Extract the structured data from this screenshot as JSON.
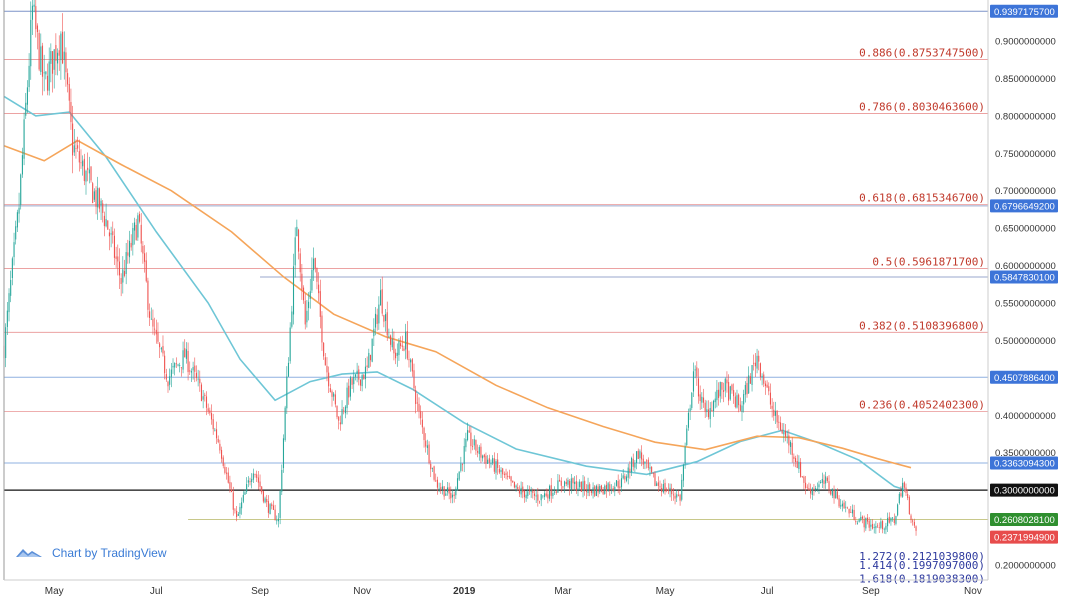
{
  "chart_data": {
    "type": "candlestick",
    "symbol_context": "price chart with Fibonacci retracement and extension levels",
    "x_range": [
      "2018-04-01",
      "2019-11-10"
    ],
    "ylim": [
      0.18,
      0.96
    ],
    "grid": false,
    "month_ticks": [
      {
        "label": "May",
        "date": "2018-05-01"
      },
      {
        "label": "Jul",
        "date": "2018-07-01"
      },
      {
        "label": "Sep",
        "date": "2018-09-01"
      },
      {
        "label": "Nov",
        "date": "2018-11-01"
      },
      {
        "label": "2019",
        "date": "2019-01-01"
      },
      {
        "label": "Mar",
        "date": "2019-03-01"
      },
      {
        "label": "May",
        "date": "2019-05-01"
      },
      {
        "label": "Jul",
        "date": "2019-07-01"
      },
      {
        "label": "Sep",
        "date": "2019-09-01"
      },
      {
        "label": "Nov",
        "date": "2019-11-01"
      }
    ],
    "price_ticks": [
      {
        "label": "0.9000000000",
        "value": 0.9
      },
      {
        "label": "0.8500000000",
        "value": 0.85
      },
      {
        "label": "0.8000000000",
        "value": 0.8
      },
      {
        "label": "0.7500000000",
        "value": 0.75
      },
      {
        "label": "0.7000000000",
        "value": 0.7
      },
      {
        "label": "0.6500000000",
        "value": 0.65
      },
      {
        "label": "0.6000000000",
        "value": 0.6
      },
      {
        "label": "0.5500000000",
        "value": 0.55
      },
      {
        "label": "0.5000000000",
        "value": 0.5
      },
      {
        "label": "0.4000000000",
        "value": 0.4
      },
      {
        "label": "0.3500000000",
        "value": 0.35
      },
      {
        "label": "0.2000000000",
        "value": 0.2
      }
    ],
    "fib_levels": [
      {
        "label": "0.886(0.8753747500)",
        "value": 0.87537475,
        "color": "#e06666",
        "text_color": "#c0392b",
        "side": "right"
      },
      {
        "label": "0.786(0.8030463600)",
        "value": 0.80304636,
        "color": "#e06666",
        "text_color": "#c0392b",
        "side": "right"
      },
      {
        "label": "0.618(0.6815346700)",
        "value": 0.68153467,
        "color": "#e06666",
        "text_color": "#c0392b",
        "side": "right"
      },
      {
        "label": "0.5(0.5961871700)",
        "value": 0.59618717,
        "color": "#e06666",
        "text_color": "#c0392b",
        "side": "right"
      },
      {
        "label": "0.382(0.5108396800)",
        "value": 0.51083968,
        "color": "#e06666",
        "text_color": "#c0392b",
        "side": "right"
      },
      {
        "label": "0.236(0.4052402300)",
        "value": 0.40524023,
        "color": "#e06666",
        "text_color": "#c0392b",
        "side": "right"
      },
      {
        "label": "1.272(0.2121039800)",
        "value": 0.21210398,
        "color": "#2e3a9e",
        "text_color": "#2e3a9e",
        "side": "right"
      },
      {
        "label": "1.414(0.1997097000)",
        "value": 0.1997097,
        "color": "#2e3a9e",
        "text_color": "#2e3a9e",
        "side": "right"
      },
      {
        "label": "1.618(0.1819038300)",
        "value": 0.18190383,
        "color": "#2e3a9e",
        "text_color": "#2e3a9e",
        "side": "right"
      }
    ],
    "horizontal_lines": [
      {
        "value": 0.93971757,
        "color": "#7d93c8",
        "tag": "0.9397175700",
        "tag_color": "#3d74d8",
        "start_date": "2018-04-01"
      },
      {
        "value": 0.67966492,
        "color": "#9aa7cc",
        "tag": "0.6796649200",
        "tag_color": "#3d74d8",
        "start_date": "2018-04-01"
      },
      {
        "value": 0.58478301,
        "color": "#9aa7cc",
        "tag": "0.5847830100",
        "tag_color": "#3d74d8",
        "start_date": "2018-09-01"
      },
      {
        "value": 0.45078864,
        "color": "#8fb0e0",
        "tag": "0.4507886400",
        "tag_color": "#3d74d8",
        "start_date": "2018-04-01"
      },
      {
        "value": 0.33630943,
        "color": "#8fb0e0",
        "tag": "0.3363094300",
        "tag_color": "#3d74d8",
        "start_date": "2018-04-01"
      },
      {
        "value": 0.3,
        "color": "#111111",
        "tag": "0.3000000000",
        "tag_color": "#111111",
        "start_date": "2018-04-01"
      },
      {
        "value": 0.26080281,
        "color": "#c8c88a",
        "tag": "0.2608028100",
        "tag_color": "#2f8f2f",
        "start_date": "2018-07-20"
      }
    ],
    "current_price": {
      "label": "0.2371994900",
      "value": 0.23719949,
      "color": "#e74c4c"
    },
    "ma_series": [
      {
        "color": "#6ec6d6",
        "points": [
          [
            "2018-04-01",
            0.826
          ],
          [
            "2018-04-20",
            0.8
          ],
          [
            "2018-05-10",
            0.805
          ],
          [
            "2018-06-01",
            0.745
          ],
          [
            "2018-07-01",
            0.645
          ],
          [
            "2018-08-01",
            0.55
          ],
          [
            "2018-08-20",
            0.475
          ],
          [
            "2018-09-10",
            0.42
          ],
          [
            "2018-10-01",
            0.445
          ],
          [
            "2018-10-20",
            0.455
          ],
          [
            "2018-11-10",
            0.458
          ],
          [
            "2018-12-01",
            0.435
          ],
          [
            "2019-01-01",
            0.39
          ],
          [
            "2019-02-01",
            0.355
          ],
          [
            "2019-03-15",
            0.332
          ],
          [
            "2019-04-20",
            0.321
          ],
          [
            "2019-05-20",
            0.338
          ],
          [
            "2019-06-15",
            0.365
          ],
          [
            "2019-07-10",
            0.38
          ],
          [
            "2019-08-01",
            0.363
          ],
          [
            "2019-08-25",
            0.34
          ],
          [
            "2019-09-15",
            0.305
          ],
          [
            "2019-09-22",
            0.3
          ]
        ]
      },
      {
        "color": "#f5a55a",
        "points": [
          [
            "2018-04-01",
            0.76
          ],
          [
            "2018-04-25",
            0.74
          ],
          [
            "2018-05-15",
            0.767
          ],
          [
            "2018-06-10",
            0.735
          ],
          [
            "2018-07-10",
            0.7
          ],
          [
            "2018-08-15",
            0.645
          ],
          [
            "2018-09-15",
            0.585
          ],
          [
            "2018-10-15",
            0.535
          ],
          [
            "2018-11-15",
            0.505
          ],
          [
            "2018-12-15",
            0.485
          ],
          [
            "2019-01-20",
            0.44
          ],
          [
            "2019-02-20",
            0.41
          ],
          [
            "2019-03-25",
            0.385
          ],
          [
            "2019-04-25",
            0.364
          ],
          [
            "2019-05-25",
            0.354
          ],
          [
            "2019-06-25",
            0.372
          ],
          [
            "2019-07-20",
            0.37
          ],
          [
            "2019-08-15",
            0.356
          ],
          [
            "2019-09-05",
            0.342
          ],
          [
            "2019-09-25",
            0.33
          ]
        ]
      }
    ],
    "price_path": [
      [
        "2018-04-01",
        0.49
      ],
      [
        "2018-04-10",
        0.68
      ],
      [
        "2018-04-18",
        0.94
      ],
      [
        "2018-04-25",
        0.84
      ],
      [
        "2018-05-05",
        0.91
      ],
      [
        "2018-05-12",
        0.76
      ],
      [
        "2018-05-20",
        0.72
      ],
      [
        "2018-06-01",
        0.66
      ],
      [
        "2018-06-10",
        0.58
      ],
      [
        "2018-06-20",
        0.66
      ],
      [
        "2018-06-28",
        0.52
      ],
      [
        "2018-07-08",
        0.45
      ],
      [
        "2018-07-18",
        0.48
      ],
      [
        "2018-07-28",
        0.43
      ],
      [
        "2018-08-08",
        0.36
      ],
      [
        "2018-08-18",
        0.26
      ],
      [
        "2018-08-28",
        0.33
      ],
      [
        "2018-09-05",
        0.28
      ],
      [
        "2018-09-12",
        0.26
      ],
      [
        "2018-09-18",
        0.48
      ],
      [
        "2018-09-23",
        0.66
      ],
      [
        "2018-09-28",
        0.52
      ],
      [
        "2018-10-03",
        0.61
      ],
      [
        "2018-10-10",
        0.47
      ],
      [
        "2018-10-18",
        0.39
      ],
      [
        "2018-10-25",
        0.44
      ],
      [
        "2018-11-04",
        0.46
      ],
      [
        "2018-11-12",
        0.56
      ],
      [
        "2018-11-20",
        0.48
      ],
      [
        "2018-11-27",
        0.5
      ],
      [
        "2018-12-05",
        0.4
      ],
      [
        "2018-12-15",
        0.31
      ],
      [
        "2018-12-25",
        0.29
      ],
      [
        "2019-01-03",
        0.37
      ],
      [
        "2019-01-10",
        0.35
      ],
      [
        "2019-01-20",
        0.33
      ],
      [
        "2019-02-01",
        0.3
      ],
      [
        "2019-02-15",
        0.29
      ],
      [
        "2019-03-01",
        0.31
      ],
      [
        "2019-03-20",
        0.3
      ],
      [
        "2019-04-05",
        0.31
      ],
      [
        "2019-04-15",
        0.35
      ],
      [
        "2019-04-25",
        0.31
      ],
      [
        "2019-05-10",
        0.29
      ],
      [
        "2019-05-18",
        0.46
      ],
      [
        "2019-05-25",
        0.4
      ],
      [
        "2019-06-05",
        0.44
      ],
      [
        "2019-06-15",
        0.41
      ],
      [
        "2019-06-25",
        0.48
      ],
      [
        "2019-07-05",
        0.4
      ],
      [
        "2019-07-15",
        0.36
      ],
      [
        "2019-07-25",
        0.3
      ],
      [
        "2019-08-05",
        0.31
      ],
      [
        "2019-08-15",
        0.28
      ],
      [
        "2019-08-25",
        0.26
      ],
      [
        "2019-09-05",
        0.25
      ],
      [
        "2019-09-15",
        0.26
      ],
      [
        "2019-09-20",
        0.31
      ],
      [
        "2019-09-28",
        0.24
      ]
    ]
  },
  "branding": {
    "text": "Chart by TradingView",
    "logo_icon": "tradingview-logo-icon"
  }
}
